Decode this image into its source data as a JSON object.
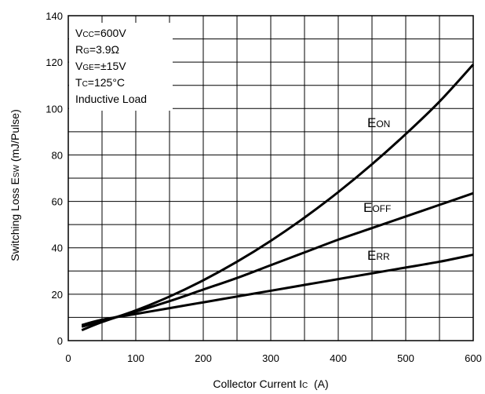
{
  "chart_data": {
    "type": "line",
    "xlabel": "Collector Current Ic  (A)",
    "ylabel": "Switching Loss Esw (mJ/Pulse)",
    "xlim": [
      0,
      600
    ],
    "ylim": [
      0,
      140
    ],
    "xticks": [
      0,
      100,
      200,
      300,
      400,
      500,
      600
    ],
    "yticks": [
      0,
      20,
      40,
      60,
      80,
      100,
      120,
      140
    ],
    "grid": true,
    "conditions": [
      "VCC=600V",
      "RG=3.9Ω",
      "VGE=±15V",
      "TC=125°C",
      "Inductive Load"
    ],
    "series": [
      {
        "name": "EON",
        "x": [
          20,
          50,
          100,
          150,
          200,
          250,
          300,
          350,
          400,
          450,
          500,
          550,
          600
        ],
        "y": [
          4.5,
          8,
          13,
          19,
          26,
          34,
          43,
          53,
          64,
          76,
          89,
          103,
          119
        ]
      },
      {
        "name": "EOFF",
        "x": [
          20,
          50,
          100,
          150,
          200,
          250,
          300,
          350,
          400,
          450,
          500,
          550,
          600
        ],
        "y": [
          6,
          8.5,
          12.5,
          17,
          22,
          27,
          32.5,
          38,
          43.5,
          48.5,
          53.5,
          58.5,
          63.5
        ]
      },
      {
        "name": "ERR",
        "x": [
          20,
          50,
          100,
          150,
          200,
          250,
          300,
          350,
          400,
          450,
          500,
          550,
          600
        ],
        "y": [
          6.7,
          9,
          11.5,
          14,
          16.5,
          19,
          21.5,
          24,
          26.5,
          29,
          31.5,
          34,
          37
        ]
      }
    ]
  },
  "conditions_text": {
    "vcc_sym": "V",
    "vcc_sub": "CC",
    "vcc_val": "=600V",
    "rg_sym": "R",
    "rg_sub": "G",
    "rg_val": "=3.9Ω",
    "vge_sym": "V",
    "vge_sub": "GE",
    "vge_val": "=±15V",
    "tc_sym": "T",
    "tc_sub": "C",
    "tc_val": "=125°C",
    "load": "Inductive Load"
  },
  "curve_labels": {
    "eon_main": "E",
    "eon_sub": "ON",
    "eoff_main": "E",
    "eoff_sub": "OFF",
    "err_main": "E",
    "err_sub": "RR"
  },
  "axis_text": {
    "x_main": "Collector Current I",
    "x_sub": "C",
    "x_unit": "  (A)",
    "y_main": "Switching Loss E",
    "y_sub": "SW",
    "y_unit": " (mJ/Pulse)"
  }
}
